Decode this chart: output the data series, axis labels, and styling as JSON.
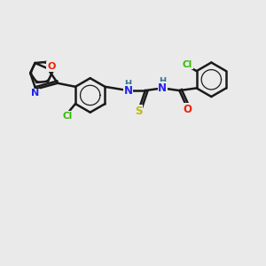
{
  "background_color": "#eaeaea",
  "bond_color": "#1a1a1a",
  "atom_colors": {
    "Cl": "#33bb00",
    "O": "#ee2200",
    "N": "#2222ee",
    "S": "#bbbb00",
    "H": "#337788",
    "C": "#1a1a1a"
  },
  "figsize": [
    3.0,
    3.0
  ],
  "dpi": 100
}
